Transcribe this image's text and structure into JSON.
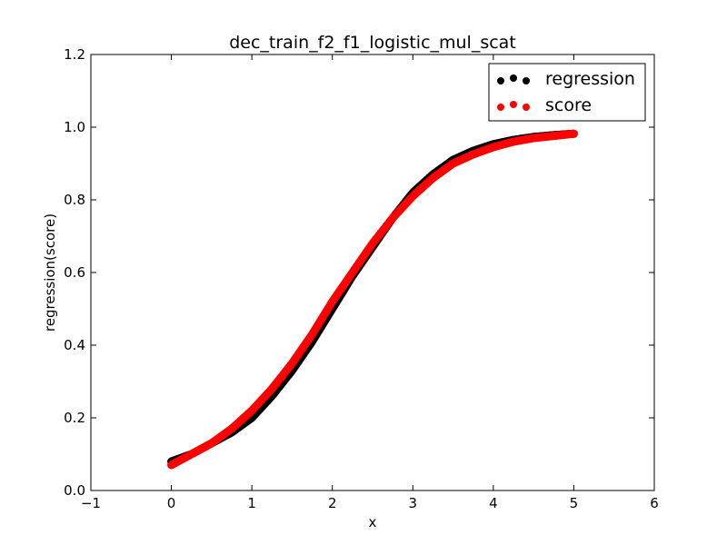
{
  "chart_data": {
    "type": "scatter",
    "title": "dec_train_f2_f1_logistic_mul_scat",
    "xlabel": "x",
    "ylabel": "regression(score)",
    "xlim": [
      -1,
      6
    ],
    "ylim": [
      0,
      1.2
    ],
    "xticks": [
      -1,
      0,
      1,
      2,
      3,
      4,
      5,
      6
    ],
    "yticks": [
      0.0,
      0.2,
      0.4,
      0.6,
      0.8,
      1.0,
      1.2
    ],
    "xtick_labels": [
      "−1",
      "0",
      "1",
      "2",
      "3",
      "4",
      "5",
      "6"
    ],
    "ytick_labels": [
      "0.0",
      "0.2",
      "0.4",
      "0.6",
      "0.8",
      "1.0",
      "1.2"
    ],
    "legend_position": "top-right",
    "grid": false,
    "series": [
      {
        "name": "regression",
        "color": "#000000",
        "x": [
          0,
          0.25,
          0.5,
          0.75,
          1,
          1.25,
          1.5,
          1.75,
          2,
          2.25,
          2.5,
          2.75,
          3,
          3.25,
          3.5,
          3.75,
          4,
          4.25,
          4.5,
          4.75,
          5
        ],
        "y": [
          0.08,
          0.1,
          0.13,
          0.16,
          0.2,
          0.26,
          0.33,
          0.41,
          0.5,
          0.59,
          0.67,
          0.75,
          0.82,
          0.87,
          0.91,
          0.935,
          0.953,
          0.965,
          0.973,
          0.978,
          0.982
        ]
      },
      {
        "name": "score",
        "color": "#ff0000",
        "x": [
          0,
          0.25,
          0.5,
          0.75,
          1,
          1.25,
          1.5,
          1.75,
          2,
          2.25,
          2.5,
          2.75,
          3,
          3.25,
          3.5,
          3.75,
          4,
          4.25,
          4.5,
          4.75,
          5
        ],
        "y": [
          0.07,
          0.1,
          0.13,
          0.17,
          0.22,
          0.28,
          0.35,
          0.43,
          0.52,
          0.6,
          0.68,
          0.75,
          0.81,
          0.86,
          0.9,
          0.925,
          0.945,
          0.96,
          0.97,
          0.976,
          0.982
        ]
      }
    ]
  }
}
